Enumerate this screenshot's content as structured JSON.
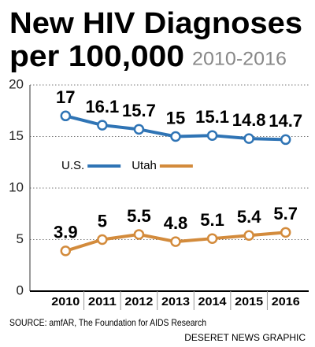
{
  "chart_data": {
    "type": "line",
    "title": "New HIV Diagnoses",
    "title_line2": "per 100,000",
    "subtitle": "2010-2016",
    "categories": [
      "2010",
      "2011",
      "2012",
      "2013",
      "2014",
      "2015",
      "2016"
    ],
    "series": [
      {
        "name": "U.S.",
        "color": "#2f74b5",
        "values": [
          17,
          16.1,
          15.7,
          15,
          15.1,
          14.8,
          14.7
        ]
      },
      {
        "name": "Utah",
        "color": "#d38b3c",
        "values": [
          3.9,
          5,
          5.5,
          4.8,
          5.1,
          5.4,
          5.7
        ]
      }
    ],
    "ylim": [
      0,
      20
    ],
    "yticks": [
      0,
      5,
      10,
      15,
      20
    ],
    "grid": true,
    "source": "SOURCE:  amfAR, The Foundation for AIDS Research",
    "credit": "DESERET NEWS GRAPHIC"
  }
}
